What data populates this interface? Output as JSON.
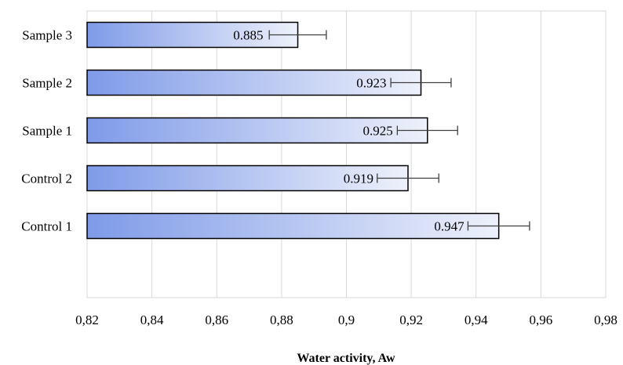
{
  "chart_data": {
    "type": "bar",
    "orientation": "horizontal",
    "categories": [
      "Control 1",
      "Control 2",
      "Sample 1",
      "Sample 2",
      "Sample 3"
    ],
    "values": [
      0.947,
      0.919,
      0.925,
      0.923,
      0.885
    ],
    "data_labels": [
      "0.947",
      "0.919",
      "0.925",
      "0.923",
      "0.885"
    ],
    "error_bars": [
      0.0095,
      0.0095,
      0.0093,
      0.0093,
      0.0088
    ],
    "xlabel": "Water activity, Aw",
    "xlim": [
      0.82,
      0.98
    ],
    "xticks": [
      0.82,
      0.84,
      0.86,
      0.88,
      0.9,
      0.92,
      0.94,
      0.96,
      0.98
    ],
    "xtick_labels": [
      "0,82",
      "0,84",
      "0,86",
      "0,88",
      "0,9",
      "0,92",
      "0,94",
      "0,96",
      "0,98"
    ],
    "grid": true,
    "legend": "none",
    "bar_gradient": [
      "#7f9be8",
      "#eef1fb"
    ],
    "grid_color": "#d9d9d9"
  }
}
